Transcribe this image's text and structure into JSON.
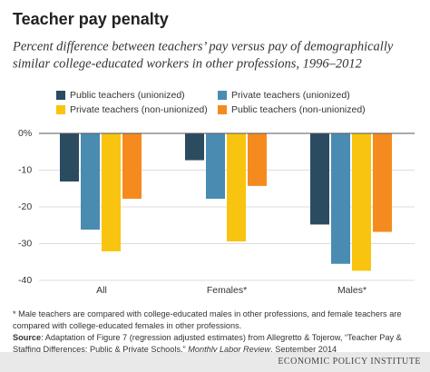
{
  "chart_data": {
    "type": "bar",
    "title": "Teacher pay penalty",
    "subtitle": [
      "Percent difference between teachers’ pay versus pay of demographically",
      "similar college-educated workers in other professions, 1996–2012"
    ],
    "categories": [
      "All",
      "Females*",
      "Males*"
    ],
    "series": [
      {
        "name": "Public teachers (unionized)",
        "color": "#2b4b60",
        "values": [
          -13.1,
          -7.3,
          -24.8
        ]
      },
      {
        "name": "Private teachers (unionized)",
        "color": "#4a8bb2",
        "values": [
          -26.2,
          -17.8,
          -35.5
        ]
      },
      {
        "name": "Private teachers (non-unionized)",
        "color": "#f8c40f",
        "values": [
          -32.1,
          -29.4,
          -37.4
        ]
      },
      {
        "name": "Public teachers (non-unionized)",
        "color": "#f58b1f",
        "values": [
          -17.8,
          -14.3,
          -26.8
        ]
      }
    ],
    "ylim": [
      -40,
      0
    ],
    "yticks": [
      {
        "value": 0,
        "label": "0%"
      },
      -10,
      -20,
      -30,
      -40
    ],
    "grid": true,
    "note": "* Male teachers are compared with college-educated males in other professions, and female teachers are compared with college-educated females in other professions.",
    "source": {
      "label": "Source",
      "text": ": Adaptation of Figure 7 (regression adjusted estimates) from Allegretto & Tojerow, “Teacher Pay & Staffing Differences: Public & Private Schools,”",
      "journal": "Monthly Labor Review",
      "date": ", September 2014"
    },
    "credit": "ECONOMIC POLICY INSTITUTE"
  }
}
